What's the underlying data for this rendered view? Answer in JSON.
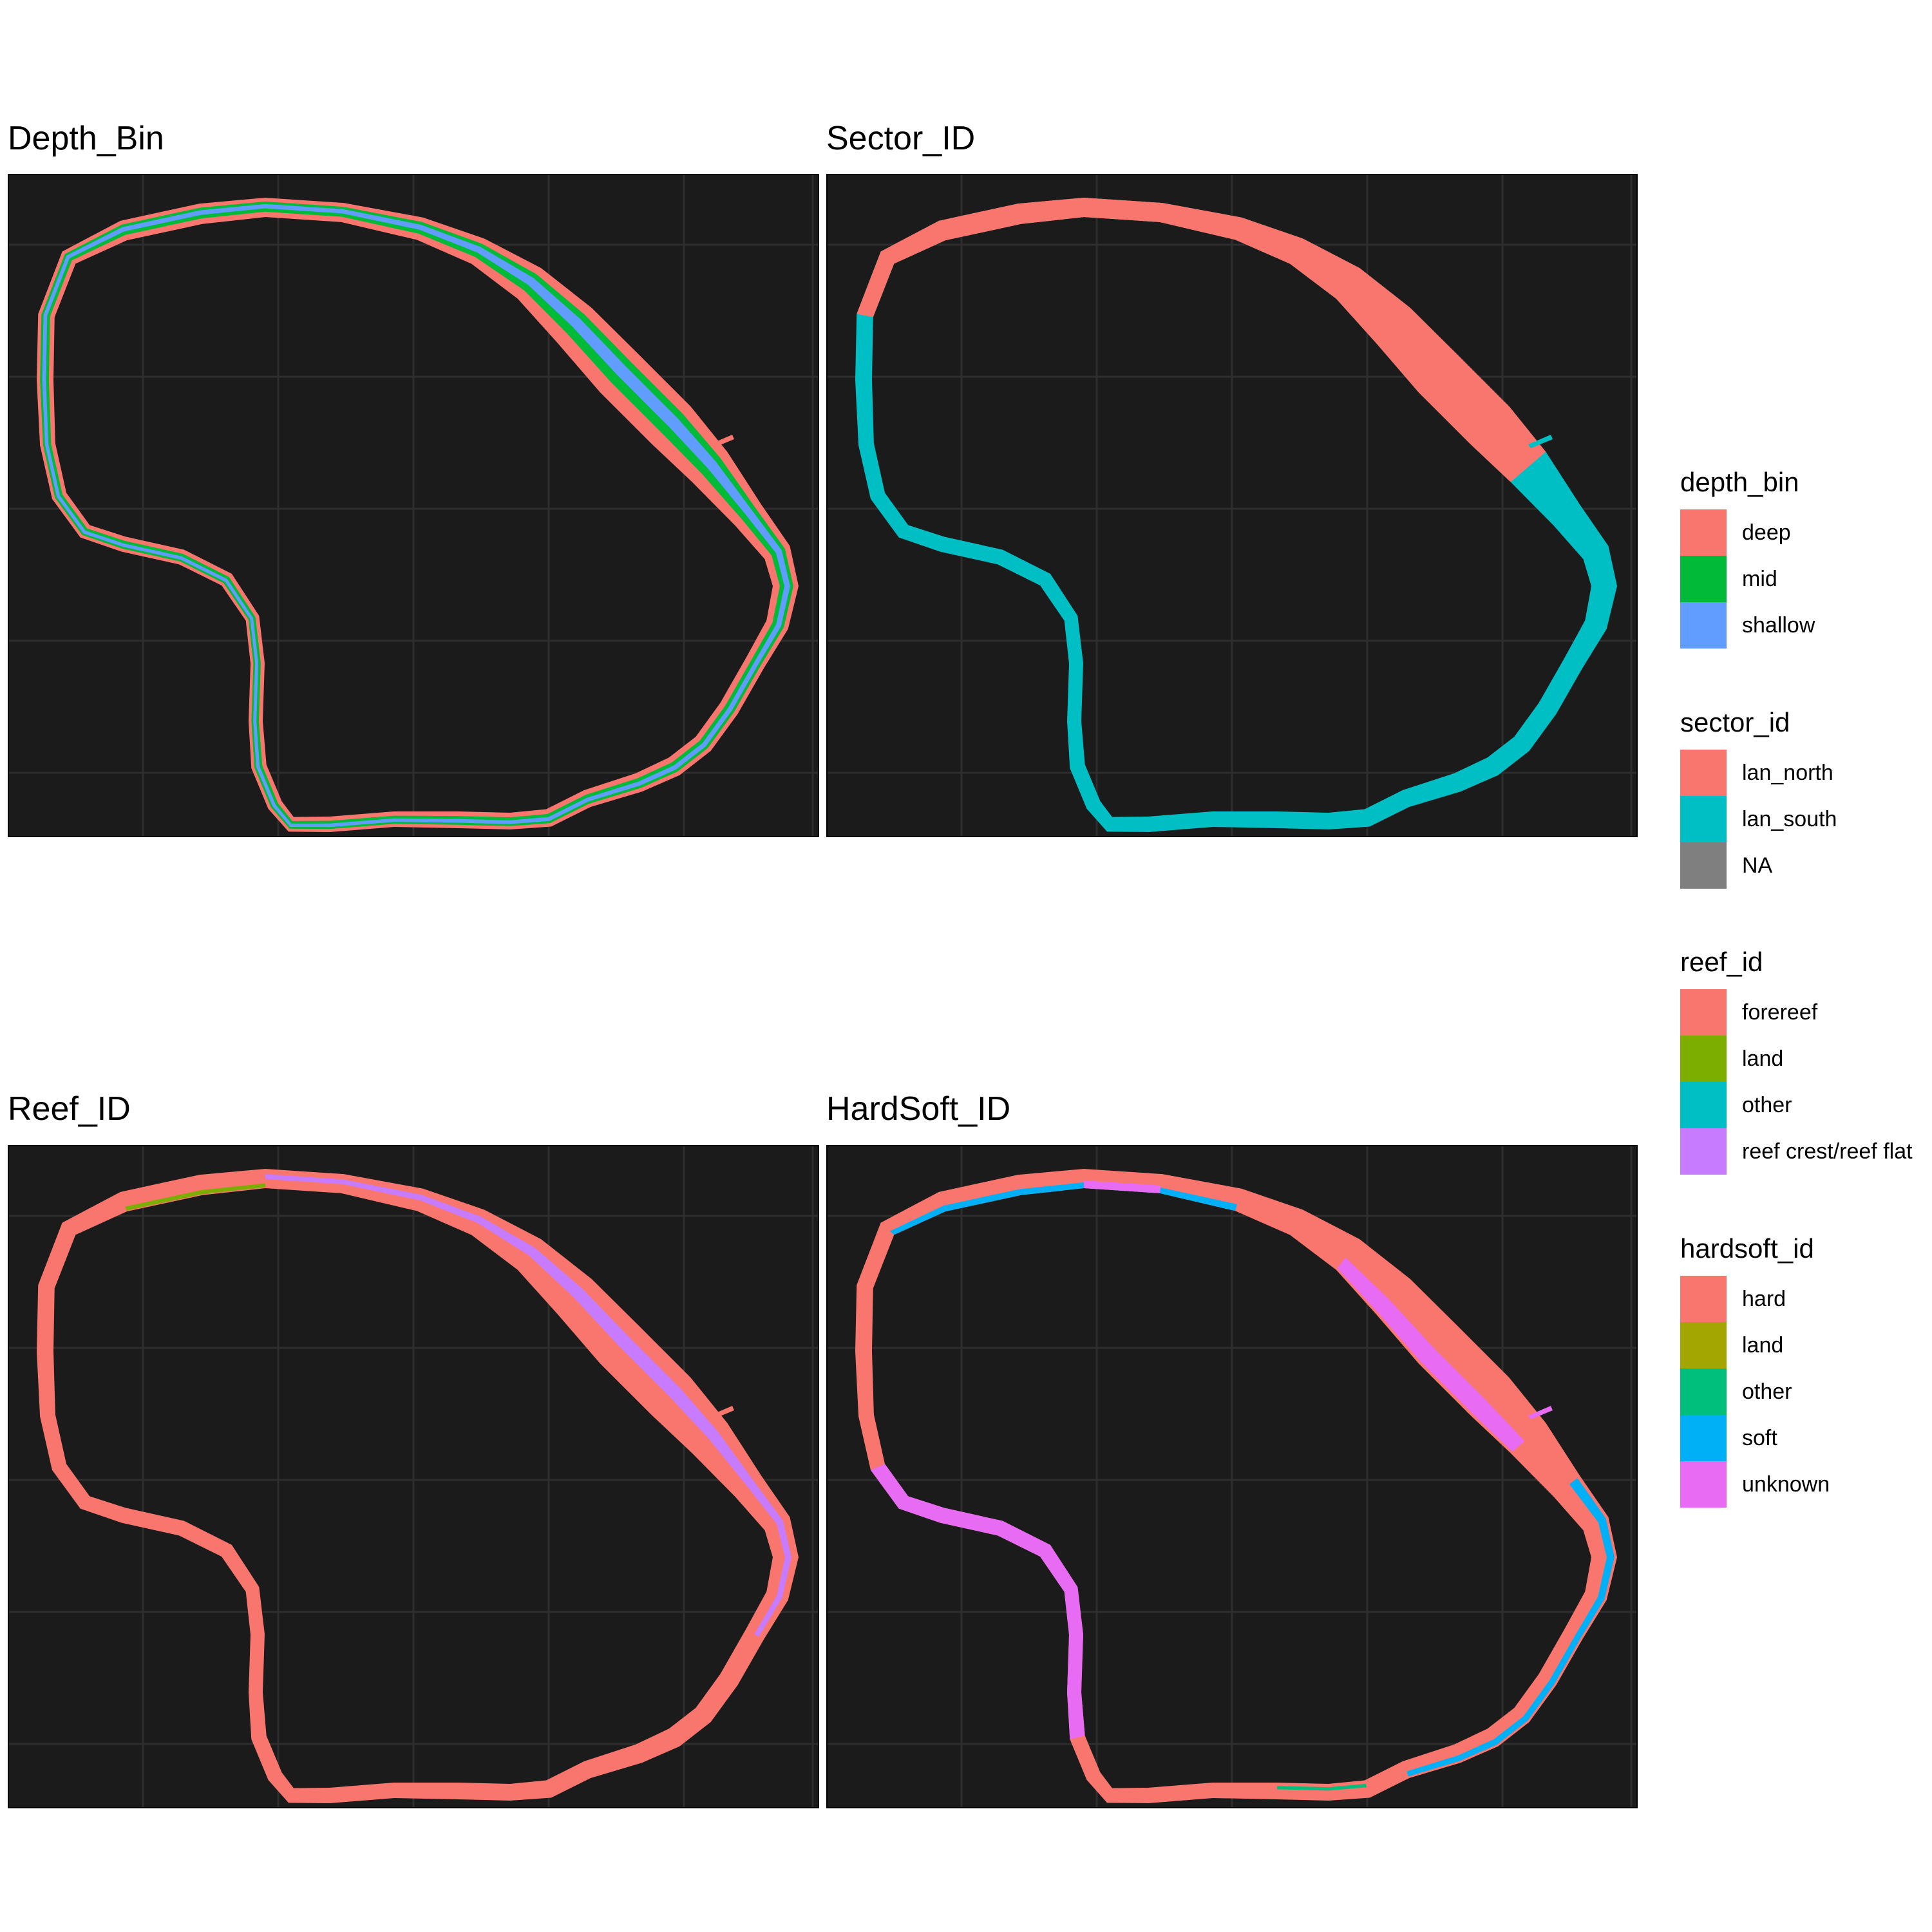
{
  "panels": [
    {
      "title": "Depth_Bin"
    },
    {
      "title": "Sector_ID"
    },
    {
      "title": "Reef_ID"
    },
    {
      "title": "HardSoft_ID"
    }
  ],
  "legends": [
    {
      "title": "depth_bin",
      "items": [
        {
          "label": "deep",
          "color": "#F8766D"
        },
        {
          "label": "mid",
          "color": "#00BA38"
        },
        {
          "label": "shallow",
          "color": "#619CFF"
        }
      ]
    },
    {
      "title": "sector_id",
      "items": [
        {
          "label": "lan_north",
          "color": "#F8766D"
        },
        {
          "label": "lan_south",
          "color": "#00BFC4"
        },
        {
          "label": "NA",
          "color": "#7F7F7F"
        }
      ]
    },
    {
      "title": "reef_id",
      "items": [
        {
          "label": "forereef",
          "color": "#F8766D"
        },
        {
          "label": "land",
          "color": "#7CAE00"
        },
        {
          "label": "other",
          "color": "#00BFC4"
        },
        {
          "label": "reef crest/reef flat",
          "color": "#C77CFF"
        }
      ]
    },
    {
      "title": "hardsoft_id",
      "items": [
        {
          "label": "hard",
          "color": "#F8766D"
        },
        {
          "label": "land",
          "color": "#A3A500"
        },
        {
          "label": "other",
          "color": "#00BF7D"
        },
        {
          "label": "soft",
          "color": "#00B0F6"
        },
        {
          "label": "unknown",
          "color": "#E76BF3"
        }
      ]
    }
  ],
  "style": {
    "panel_background": "#1b1b1b",
    "grid_color": "#2e2e2e"
  }
}
